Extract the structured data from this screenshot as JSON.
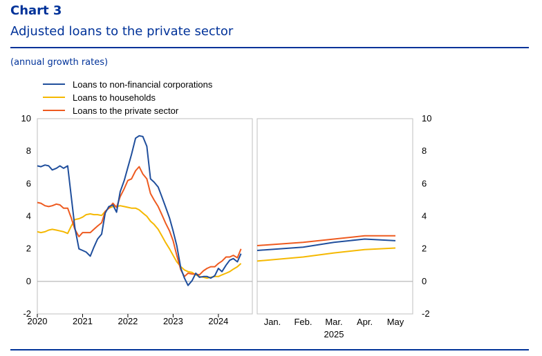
{
  "header": {
    "chart_label": "Chart 3",
    "title": "Adjusted loans to the private sector",
    "subtitle": "(annual growth rates)"
  },
  "colors": {
    "nfc": "#1f4e9c",
    "households": "#f5b800",
    "private_sector": "#ee5a1f",
    "brand": "#003299",
    "frame": "#bfbfbf",
    "zero_line": "#a6a6a6"
  },
  "chart_data": [
    {
      "type": "line",
      "panel": "historical",
      "ylim": [
        -2,
        10
      ],
      "yticks": [
        -2,
        0,
        2,
        4,
        6,
        8,
        10
      ],
      "xlim": [
        2020.0,
        2024.75
      ],
      "xticks": [
        {
          "value": 2020,
          "label": "2020"
        },
        {
          "value": 2021,
          "label": "2021"
        },
        {
          "value": 2022,
          "label": "2022"
        },
        {
          "value": 2023,
          "label": "2023"
        },
        {
          "value": 2024,
          "label": "2024"
        }
      ],
      "legend_position": "top-left",
      "grid": false,
      "series": [
        {
          "name": "Loans to non-financial corporations",
          "color_key": "nfc",
          "points": [
            [
              2020.0,
              7.1
            ],
            [
              2020.08,
              7.05
            ],
            [
              2020.17,
              7.15
            ],
            [
              2020.25,
              7.1
            ],
            [
              2020.33,
              6.85
            ],
            [
              2020.42,
              6.95
            ],
            [
              2020.5,
              7.1
            ],
            [
              2020.58,
              6.95
            ],
            [
              2020.67,
              7.1
            ],
            [
              2020.75,
              5.2
            ],
            [
              2020.83,
              3.3
            ],
            [
              2020.92,
              2.0
            ],
            [
              2021.0,
              1.9
            ],
            [
              2021.08,
              1.8
            ],
            [
              2021.17,
              1.55
            ],
            [
              2021.25,
              2.1
            ],
            [
              2021.33,
              2.6
            ],
            [
              2021.42,
              2.9
            ],
            [
              2021.5,
              4.2
            ],
            [
              2021.58,
              4.6
            ],
            [
              2021.67,
              4.7
            ],
            [
              2021.75,
              4.25
            ],
            [
              2021.83,
              5.5
            ],
            [
              2021.92,
              6.2
            ],
            [
              2022.0,
              7.0
            ],
            [
              2022.08,
              7.8
            ],
            [
              2022.17,
              8.8
            ],
            [
              2022.25,
              8.95
            ],
            [
              2022.33,
              8.9
            ],
            [
              2022.42,
              8.3
            ],
            [
              2022.5,
              6.3
            ],
            [
              2022.58,
              6.1
            ],
            [
              2022.67,
              5.8
            ],
            [
              2022.75,
              5.2
            ],
            [
              2022.83,
              4.6
            ],
            [
              2022.92,
              3.9
            ],
            [
              2023.0,
              3.1
            ],
            [
              2023.08,
              2.2
            ],
            [
              2023.17,
              0.8
            ],
            [
              2023.25,
              0.2
            ],
            [
              2023.33,
              -0.25
            ],
            [
              2023.42,
              0.05
            ],
            [
              2023.5,
              0.5
            ],
            [
              2023.58,
              0.25
            ],
            [
              2023.67,
              0.3
            ],
            [
              2023.75,
              0.3
            ],
            [
              2023.83,
              0.2
            ],
            [
              2023.92,
              0.35
            ],
            [
              2024.0,
              0.8
            ],
            [
              2024.08,
              0.6
            ],
            [
              2024.17,
              1.0
            ],
            [
              2024.25,
              1.3
            ],
            [
              2024.33,
              1.4
            ],
            [
              2024.42,
              1.2
            ],
            [
              2024.5,
              1.7
            ]
          ]
        },
        {
          "name": "Loans to households",
          "color_key": "households",
          "points": [
            [
              2020.0,
              3.05
            ],
            [
              2020.08,
              3.0
            ],
            [
              2020.17,
              3.05
            ],
            [
              2020.25,
              3.15
            ],
            [
              2020.33,
              3.2
            ],
            [
              2020.42,
              3.15
            ],
            [
              2020.5,
              3.1
            ],
            [
              2020.58,
              3.05
            ],
            [
              2020.67,
              2.95
            ],
            [
              2020.75,
              3.4
            ],
            [
              2020.83,
              3.8
            ],
            [
              2020.92,
              3.85
            ],
            [
              2021.0,
              3.95
            ],
            [
              2021.08,
              4.1
            ],
            [
              2021.17,
              4.15
            ],
            [
              2021.25,
              4.1
            ],
            [
              2021.33,
              4.1
            ],
            [
              2021.42,
              4.05
            ],
            [
              2021.5,
              4.3
            ],
            [
              2021.58,
              4.5
            ],
            [
              2021.67,
              4.6
            ],
            [
              2021.75,
              4.6
            ],
            [
              2021.83,
              4.65
            ],
            [
              2021.92,
              4.6
            ],
            [
              2022.0,
              4.55
            ],
            [
              2022.08,
              4.5
            ],
            [
              2022.17,
              4.5
            ],
            [
              2022.25,
              4.4
            ],
            [
              2022.33,
              4.2
            ],
            [
              2022.42,
              4.0
            ],
            [
              2022.5,
              3.7
            ],
            [
              2022.58,
              3.5
            ],
            [
              2022.67,
              3.2
            ],
            [
              2022.75,
              2.8
            ],
            [
              2022.83,
              2.4
            ],
            [
              2022.92,
              2.0
            ],
            [
              2023.0,
              1.6
            ],
            [
              2023.08,
              1.2
            ],
            [
              2023.17,
              0.9
            ],
            [
              2023.25,
              0.7
            ],
            [
              2023.33,
              0.6
            ],
            [
              2023.42,
              0.55
            ],
            [
              2023.5,
              0.4
            ],
            [
              2023.58,
              0.3
            ],
            [
              2023.67,
              0.25
            ],
            [
              2023.75,
              0.2
            ],
            [
              2023.83,
              0.25
            ],
            [
              2023.92,
              0.3
            ],
            [
              2024.0,
              0.3
            ],
            [
              2024.08,
              0.4
            ],
            [
              2024.17,
              0.5
            ],
            [
              2024.25,
              0.6
            ],
            [
              2024.33,
              0.75
            ],
            [
              2024.42,
              0.9
            ],
            [
              2024.5,
              1.1
            ]
          ]
        },
        {
          "name": "Loans to the private sector",
          "color_key": "private_sector",
          "points": [
            [
              2020.0,
              4.85
            ],
            [
              2020.08,
              4.8
            ],
            [
              2020.17,
              4.65
            ],
            [
              2020.25,
              4.6
            ],
            [
              2020.33,
              4.65
            ],
            [
              2020.42,
              4.75
            ],
            [
              2020.5,
              4.7
            ],
            [
              2020.58,
              4.5
            ],
            [
              2020.67,
              4.5
            ],
            [
              2020.75,
              3.9
            ],
            [
              2020.83,
              3.2
            ],
            [
              2020.92,
              2.75
            ],
            [
              2021.0,
              3.0
            ],
            [
              2021.08,
              3.0
            ],
            [
              2021.17,
              3.0
            ],
            [
              2021.25,
              3.2
            ],
            [
              2021.33,
              3.4
            ],
            [
              2021.42,
              3.6
            ],
            [
              2021.5,
              4.3
            ],
            [
              2021.58,
              4.5
            ],
            [
              2021.67,
              4.8
            ],
            [
              2021.75,
              4.55
            ],
            [
              2021.83,
              5.2
            ],
            [
              2021.92,
              5.7
            ],
            [
              2022.0,
              6.2
            ],
            [
              2022.08,
              6.3
            ],
            [
              2022.17,
              6.8
            ],
            [
              2022.25,
              7.05
            ],
            [
              2022.33,
              6.6
            ],
            [
              2022.42,
              6.3
            ],
            [
              2022.5,
              5.4
            ],
            [
              2022.58,
              5.0
            ],
            [
              2022.67,
              4.6
            ],
            [
              2022.75,
              4.1
            ],
            [
              2022.83,
              3.6
            ],
            [
              2022.92,
              3.1
            ],
            [
              2023.0,
              2.5
            ],
            [
              2023.08,
              1.6
            ],
            [
              2023.17,
              0.7
            ],
            [
              2023.25,
              0.3
            ],
            [
              2023.33,
              0.5
            ],
            [
              2023.42,
              0.45
            ],
            [
              2023.5,
              0.45
            ],
            [
              2023.58,
              0.4
            ],
            [
              2023.67,
              0.65
            ],
            [
              2023.75,
              0.8
            ],
            [
              2023.83,
              0.9
            ],
            [
              2023.92,
              0.9
            ],
            [
              2024.0,
              1.1
            ],
            [
              2024.08,
              1.25
            ],
            [
              2024.17,
              1.5
            ],
            [
              2024.25,
              1.5
            ],
            [
              2024.33,
              1.6
            ],
            [
              2024.42,
              1.45
            ],
            [
              2024.5,
              2.0
            ]
          ]
        }
      ]
    },
    {
      "type": "line",
      "panel": "2025 months",
      "ylim": [
        -2,
        10
      ],
      "yticks": [
        -2,
        0,
        2,
        4,
        6,
        8,
        10
      ],
      "categories": [
        "Jan.",
        "Feb.",
        "Mar.",
        "Apr.",
        "May"
      ],
      "xlabel": "2025",
      "series": [
        {
          "name": "Loans to non-financial corporations",
          "color_key": "nfc",
          "values": [
            1.9,
            2.1,
            2.4,
            2.6,
            2.5
          ]
        },
        {
          "name": "Loans to households",
          "color_key": "households",
          "values": [
            1.25,
            1.5,
            1.75,
            1.95,
            2.05
          ]
        },
        {
          "name": "Loans to the private sector",
          "color_key": "private_sector",
          "values": [
            2.2,
            2.4,
            2.6,
            2.8,
            2.8
          ]
        }
      ]
    }
  ]
}
